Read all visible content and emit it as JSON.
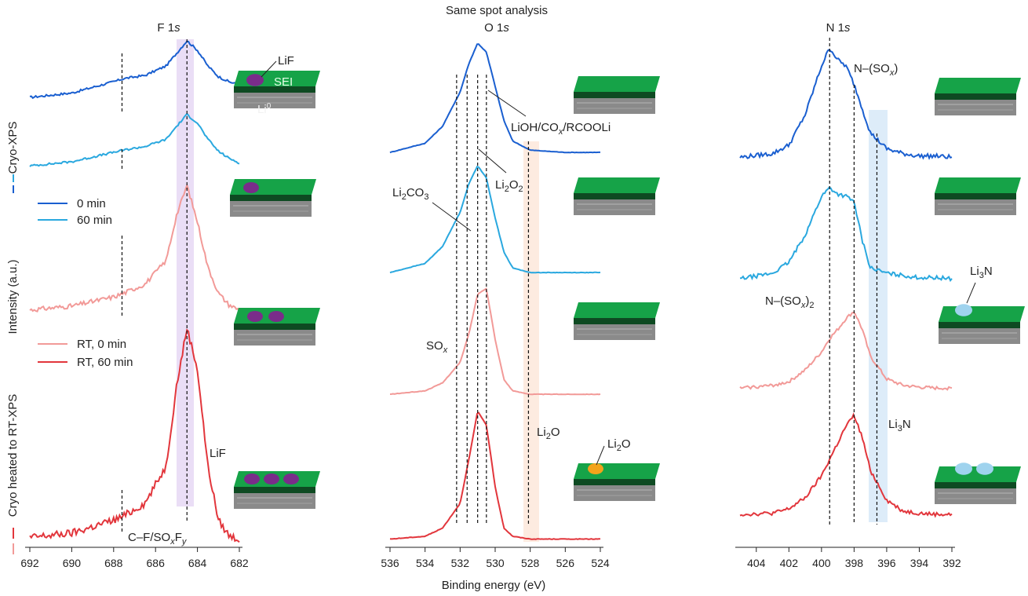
{
  "figure": {
    "suptitle": "Same spot analysis",
    "xlabel": "Binding energy (eV)",
    "ylabel": "Intensity (a.u.)",
    "group_labels": [
      "Cryo-XPS",
      "Cryo heated to RT-XPS"
    ],
    "legend": [
      {
        "label": "0 min",
        "color": "#1a5fd0"
      },
      {
        "label": "60 min",
        "color": "#2aa8df"
      },
      {
        "label": "RT, 0 min",
        "color": "#f29a98"
      },
      {
        "label": "RT, 60 min",
        "color": "#e2363c"
      }
    ],
    "colors": {
      "c0": "#1a5fd0",
      "c1": "#2aa8df",
      "c2": "#f29a98",
      "c3": "#e2363c",
      "sei": "#16a348",
      "sei_dark": "#0e4a22",
      "lif": "#7a2c8a",
      "li2o": "#f2a31b",
      "li3n": "#9fd3ee",
      "li_metal": "#8a8a8a"
    }
  },
  "chart_data": [
    {
      "type": "line",
      "title": "F 1s",
      "x_range": [
        692,
        682
      ],
      "xticks": [
        692,
        690,
        688,
        686,
        684,
        682
      ],
      "series_names": [
        "0 min",
        "60 min",
        "RT, 0 min",
        "RT, 60 min"
      ],
      "peak_positions_eV": [
        684.5,
        687.6
      ],
      "annotations": {
        "lif_peak": "LiF",
        "cf_label": "C–F/SOxFy",
        "sei_lif": "LiF",
        "sei": "SEI",
        "li_metal": "Li0"
      },
      "series": [
        {
          "name": "0 min",
          "x": [
            692,
            690,
            688,
            687.5,
            686.5,
            685.5,
            685,
            684.5,
            684,
            683.5,
            683,
            682.5,
            682
          ],
          "values": [
            0.05,
            0.12,
            0.3,
            0.35,
            0.4,
            0.55,
            0.75,
            0.95,
            0.8,
            0.55,
            0.38,
            0.3,
            0.25
          ]
        },
        {
          "name": "60 min",
          "x": [
            692,
            690,
            688,
            687.5,
            686.5,
            685.5,
            685,
            684.5,
            684,
            683.5,
            683,
            682.5,
            682
          ],
          "values": [
            0.05,
            0.12,
            0.28,
            0.32,
            0.38,
            0.5,
            0.72,
            0.92,
            0.78,
            0.5,
            0.3,
            0.18,
            0.1
          ]
        },
        {
          "name": "RT, 0 min",
          "x": [
            692,
            690,
            688,
            687.5,
            686.5,
            685.5,
            685,
            684.5,
            684,
            683.5,
            683,
            682.5,
            682
          ],
          "values": [
            0.02,
            0.05,
            0.12,
            0.15,
            0.22,
            0.4,
            0.75,
            0.98,
            0.7,
            0.35,
            0.15,
            0.06,
            0.02
          ]
        },
        {
          "name": "RT, 60 min",
          "x": [
            692,
            690,
            688,
            687.5,
            686.5,
            685.5,
            685,
            684.5,
            684,
            683.5,
            683,
            682.5,
            682
          ],
          "values": [
            0.02,
            0.04,
            0.1,
            0.12,
            0.18,
            0.35,
            0.72,
            0.99,
            0.8,
            0.35,
            0.1,
            0.03,
            0.01
          ]
        }
      ]
    },
    {
      "type": "line",
      "title": "O 1s",
      "x_range": [
        536,
        524
      ],
      "xticks": [
        536,
        534,
        532,
        530,
        528,
        526,
        524
      ],
      "series_names": [
        "0 min",
        "60 min",
        "RT, 0 min",
        "RT, 60 min"
      ],
      "peak_positions_eV": [
        532.2,
        531.6,
        531.0,
        530.5,
        528.1
      ],
      "annotations": {
        "lioh": "LiOH/COx/RCOOLi",
        "li2o2": "Li2O2",
        "li2co3": "Li2CO3",
        "sox": "SOx",
        "li2o": "Li2O",
        "li2o_particle": "Li2O"
      },
      "series": [
        {
          "name": "0 min",
          "x": [
            536,
            534,
            533,
            532,
            531.5,
            531,
            530.5,
            530,
            529.5,
            529,
            528,
            526,
            524
          ],
          "values": [
            0.02,
            0.1,
            0.25,
            0.55,
            0.8,
            0.98,
            0.9,
            0.6,
            0.3,
            0.12,
            0.04,
            0.02,
            0.02
          ]
        },
        {
          "name": "60 min",
          "x": [
            536,
            534,
            533,
            532,
            531.5,
            531,
            530.5,
            530,
            529.5,
            529,
            528,
            526,
            524
          ],
          "values": [
            0.02,
            0.1,
            0.25,
            0.55,
            0.8,
            0.96,
            0.85,
            0.5,
            0.2,
            0.06,
            0.02,
            0.02,
            0.02
          ]
        },
        {
          "name": "RT, 0 min",
          "x": [
            536,
            534,
            533,
            532,
            531.5,
            531,
            530.5,
            530,
            529.5,
            529,
            528,
            526,
            524
          ],
          "values": [
            0.02,
            0.05,
            0.12,
            0.3,
            0.55,
            0.9,
            0.95,
            0.5,
            0.15,
            0.05,
            0.02,
            0.02,
            0.02
          ]
        },
        {
          "name": "RT, 60 min",
          "x": [
            536,
            534,
            533,
            532,
            531.5,
            531,
            530.5,
            530,
            529.5,
            529,
            528,
            526,
            524
          ],
          "values": [
            0.02,
            0.04,
            0.1,
            0.28,
            0.6,
            0.95,
            0.85,
            0.4,
            0.1,
            0.04,
            0.02,
            0.02,
            0.02
          ]
        }
      ]
    },
    {
      "type": "line",
      "title": "N 1s",
      "x_range": [
        405,
        392
      ],
      "xticks": [
        404,
        402,
        400,
        398,
        396,
        394,
        392
      ],
      "series_names": [
        "0 min",
        "60 min",
        "RT, 0 min",
        "RT, 60 min"
      ],
      "peak_positions_eV": [
        399.5,
        398.0,
        396.6
      ],
      "annotations": {
        "nsox": "N–(SOx)",
        "nsox2": "N–(SOx)2",
        "li3n": "Li3N",
        "li3n_particle": "Li3N"
      },
      "series": [
        {
          "name": "0 min",
          "x": [
            405,
            403,
            402,
            401,
            400,
            399.5,
            399,
            398.5,
            398,
            397.5,
            397,
            396,
            395,
            394,
            393,
            392
          ],
          "values": [
            0.05,
            0.08,
            0.15,
            0.4,
            0.8,
            0.95,
            0.85,
            0.8,
            0.65,
            0.45,
            0.25,
            0.12,
            0.08,
            0.06,
            0.06,
            0.05
          ]
        },
        {
          "name": "60 min",
          "x": [
            405,
            403,
            402,
            401,
            400,
            399.5,
            399,
            398.5,
            398,
            397.5,
            397,
            396,
            395,
            394,
            393,
            392
          ],
          "values": [
            0.05,
            0.1,
            0.2,
            0.45,
            0.8,
            0.88,
            0.82,
            0.8,
            0.75,
            0.4,
            0.15,
            0.1,
            0.08,
            0.06,
            0.06,
            0.05
          ]
        },
        {
          "name": "RT, 0 min",
          "x": [
            405,
            403,
            402,
            401,
            400,
            399.5,
            399,
            398.5,
            398,
            397.5,
            397,
            396,
            395,
            394,
            393,
            392
          ],
          "values": [
            0.05,
            0.08,
            0.12,
            0.25,
            0.45,
            0.6,
            0.7,
            0.82,
            0.9,
            0.7,
            0.4,
            0.15,
            0.08,
            0.06,
            0.05,
            0.05
          ]
        },
        {
          "name": "RT, 60 min",
          "x": [
            405,
            403,
            402,
            401,
            400,
            399.5,
            399,
            398.5,
            398,
            397.5,
            397,
            396,
            395,
            394,
            393,
            392
          ],
          "values": [
            0.05,
            0.06,
            0.1,
            0.2,
            0.4,
            0.55,
            0.7,
            0.85,
            0.95,
            0.75,
            0.45,
            0.18,
            0.08,
            0.06,
            0.05,
            0.05
          ]
        }
      ]
    }
  ]
}
